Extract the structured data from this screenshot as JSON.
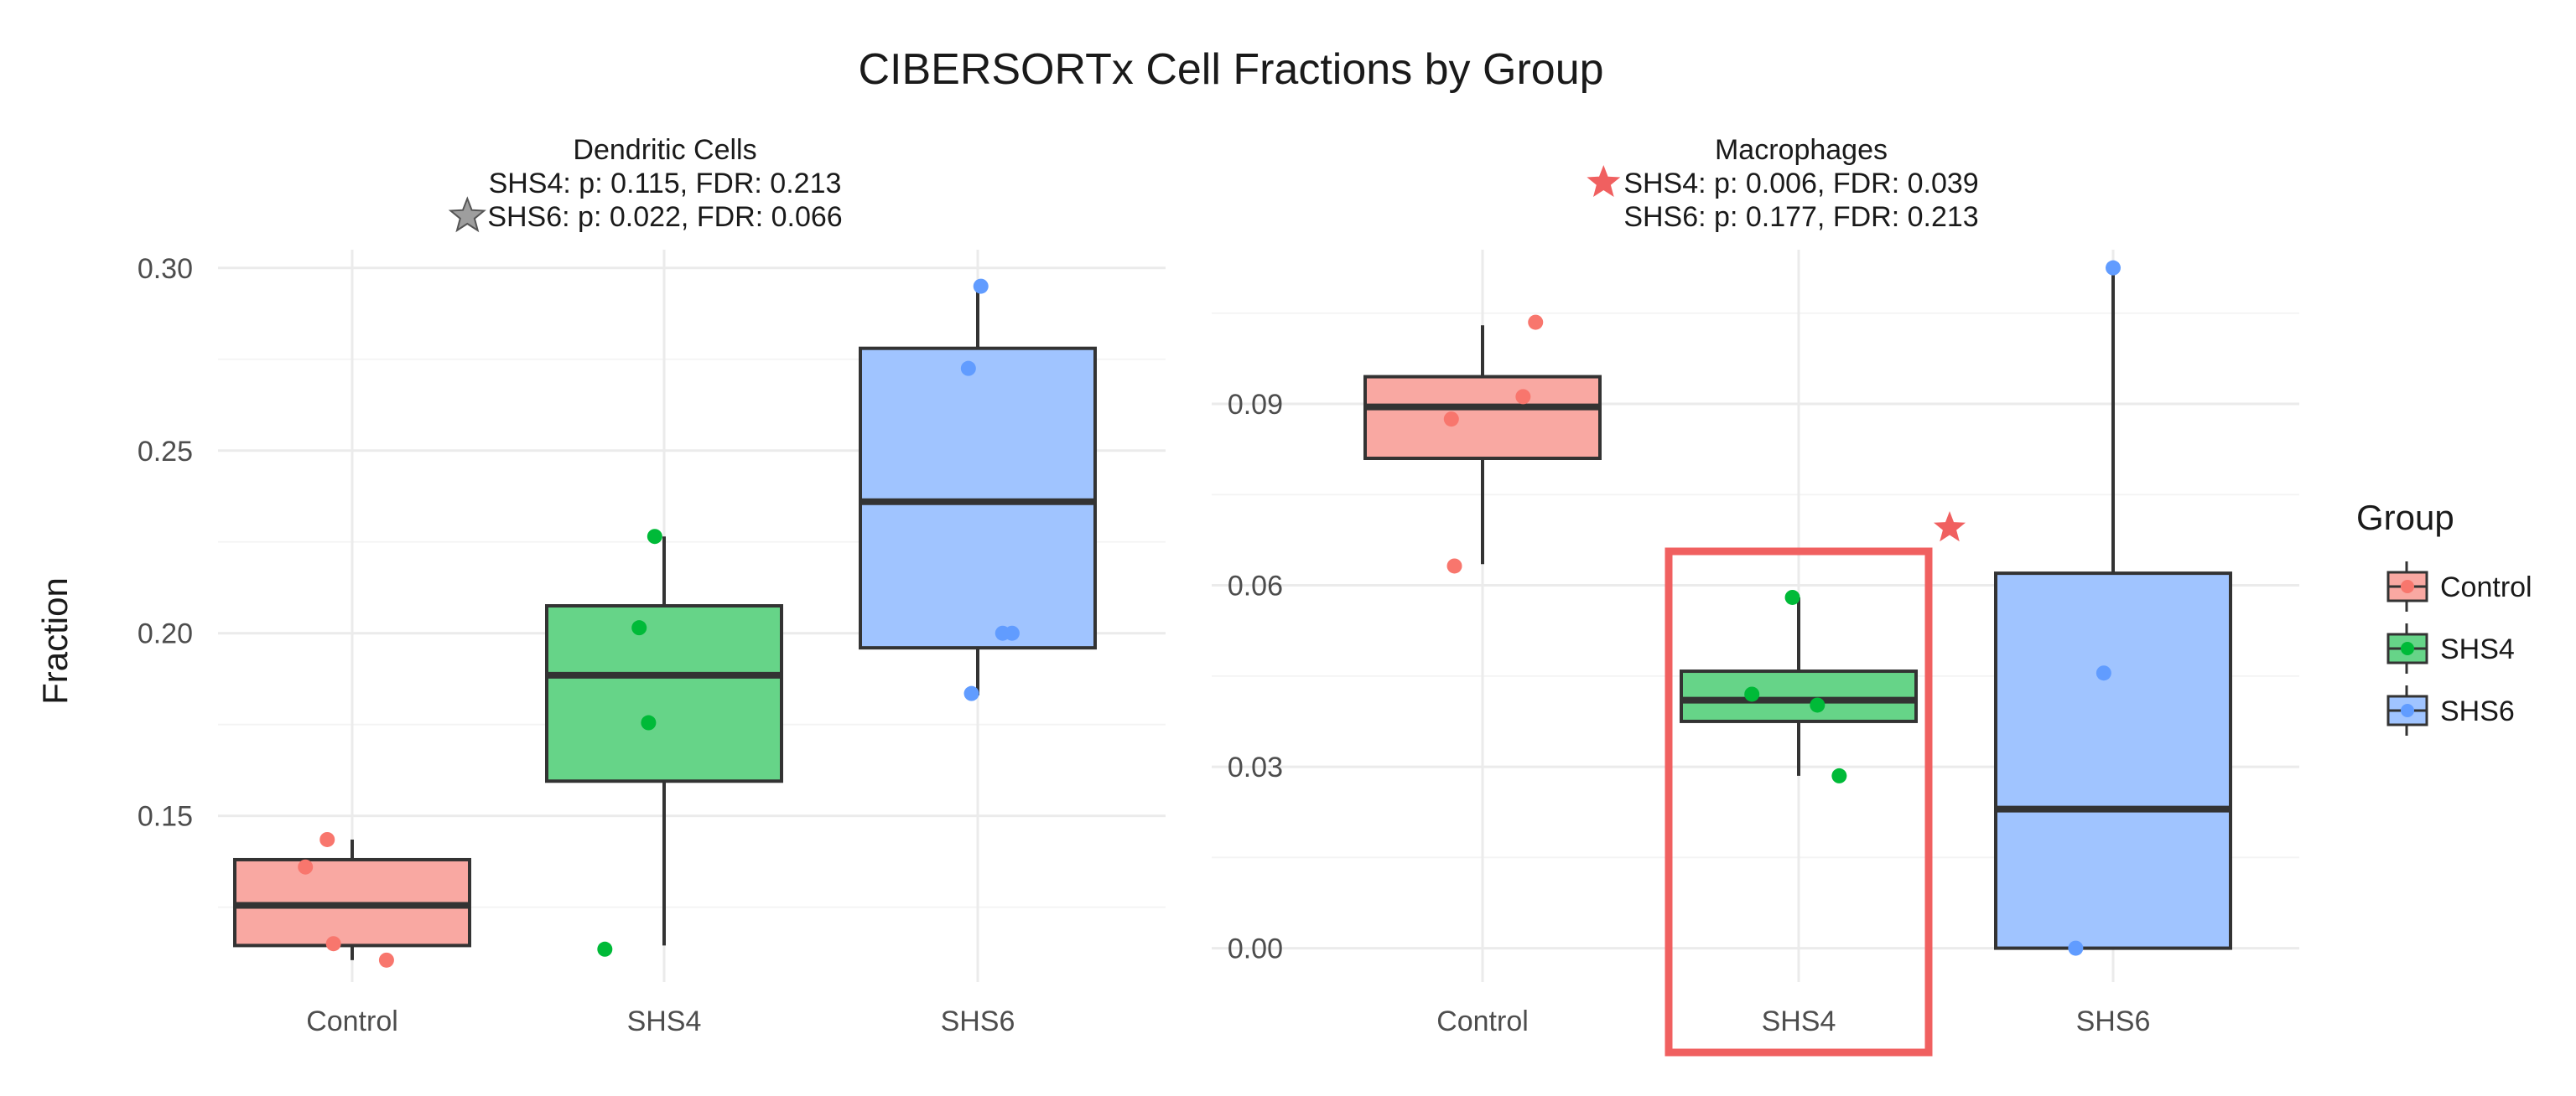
{
  "figure_title": "CIBERSORTx Cell Fractions by Group",
  "colors": {
    "Control": "#F8766D",
    "SHS4": "#00BA38",
    "SHS6": "#619CFF",
    "Control_fill": "#F9A8A2",
    "SHS4_fill": "#66D488",
    "SHS6_fill": "#A0C4FF",
    "highlight": "#F06060",
    "star_gray": "#9E9E9E"
  },
  "legend": {
    "title": "Group",
    "entries": [
      "Control",
      "SHS4",
      "SHS6"
    ]
  },
  "chart_data": [
    {
      "type": "box",
      "title": "Dendritic Cells",
      "subtitle_lines": [
        {
          "text": "SHS4: p: 0.115, FDR: 0.213",
          "star": "none"
        },
        {
          "text": "SHS6: p: 0.022, FDR: 0.066",
          "star": "gray"
        }
      ],
      "xlabel": "",
      "ylabel": "Fraction",
      "categories": [
        "Control",
        "SHS4",
        "SHS6"
      ],
      "ylim": [
        0.1045,
        0.305
      ],
      "yticks": [
        0.15,
        0.2,
        0.25,
        0.3
      ],
      "ytick_labels": [
        "0.15",
        "0.20",
        "0.25",
        "0.30"
      ],
      "boxes": [
        {
          "group": "Control",
          "q1": 0.1145,
          "median": 0.1255,
          "q3": 0.138,
          "whisker_low": 0.1105,
          "whisker_high": 0.1435
        },
        {
          "group": "SHS4",
          "q1": 0.1595,
          "median": 0.1885,
          "q3": 0.2075,
          "whisker_low": 0.1145,
          "whisker_high": 0.2265
        },
        {
          "group": "SHS6",
          "q1": 0.196,
          "median": 0.236,
          "q3": 0.278,
          "whisker_low": 0.183,
          "whisker_high": 0.295
        }
      ],
      "points": [
        {
          "group": "Control",
          "jitter": -0.15,
          "y": 0.136
        },
        {
          "group": "Control",
          "jitter": -0.08,
          "y": 0.1435
        },
        {
          "group": "Control",
          "jitter": -0.06,
          "y": 0.115
        },
        {
          "group": "Control",
          "jitter": 0.11,
          "y": 0.1105
        },
        {
          "group": "SHS4",
          "jitter": -0.19,
          "y": 0.1135
        },
        {
          "group": "SHS4",
          "jitter": -0.08,
          "y": 0.2015
        },
        {
          "group": "SHS4",
          "jitter": -0.05,
          "y": 0.1755
        },
        {
          "group": "SHS4",
          "jitter": -0.03,
          "y": 0.2265
        },
        {
          "group": "SHS6",
          "jitter": -0.02,
          "y": 0.1835
        },
        {
          "group": "SHS6",
          "jitter": -0.03,
          "y": 0.2725
        },
        {
          "group": "SHS6",
          "jitter": 0.01,
          "y": 0.295
        },
        {
          "group": "SHS6",
          "jitter": 0.08,
          "y": 0.2
        },
        {
          "group": "SHS6",
          "jitter": 0.11,
          "y": 0.2
        }
      ]
    },
    {
      "type": "box",
      "title": "Macrophages",
      "subtitle_lines": [
        {
          "text": "SHS4: p: 0.006, FDR: 0.039",
          "star": "red"
        },
        {
          "text": "SHS6: p: 0.177, FDR: 0.213",
          "star": "none"
        }
      ],
      "xlabel": "",
      "ylabel": "",
      "categories": [
        "Control",
        "SHS4",
        "SHS6"
      ],
      "ylim": [
        -0.0056,
        0.1155
      ],
      "yticks": [
        0.0,
        0.03,
        0.06,
        0.09
      ],
      "ytick_labels": [
        "0.00",
        "0.03",
        "0.06",
        "0.09"
      ],
      "highlight_category": "SHS4",
      "boxes": [
        {
          "group": "Control",
          "q1": 0.081,
          "median": 0.0895,
          "q3": 0.0945,
          "whisker_low": 0.0635,
          "whisker_high": 0.103
        },
        {
          "group": "SHS4",
          "q1": 0.0375,
          "median": 0.041,
          "q3": 0.0458,
          "whisker_low": 0.0285,
          "whisker_high": 0.058
        },
        {
          "group": "SHS6",
          "q1": 0.0,
          "median": 0.023,
          "q3": 0.062,
          "whisker_low": 0.0,
          "whisker_high": 0.1125
        }
      ],
      "points": [
        {
          "group": "Control",
          "jitter": -0.1,
          "y": 0.0875
        },
        {
          "group": "Control",
          "jitter": -0.09,
          "y": 0.0632
        },
        {
          "group": "Control",
          "jitter": 0.13,
          "y": 0.0912
        },
        {
          "group": "Control",
          "jitter": 0.17,
          "y": 0.1035
        },
        {
          "group": "SHS4",
          "jitter": -0.15,
          "y": 0.042
        },
        {
          "group": "SHS4",
          "jitter": -0.02,
          "y": 0.058
        },
        {
          "group": "SHS4",
          "jitter": 0.06,
          "y": 0.0402
        },
        {
          "group": "SHS4",
          "jitter": 0.13,
          "y": 0.0285
        },
        {
          "group": "SHS6",
          "jitter": -0.12,
          "y": 0.0
        },
        {
          "group": "SHS6",
          "jitter": -0.03,
          "y": 0.0455
        },
        {
          "group": "SHS6",
          "jitter": 0.0,
          "y": 0.1125
        }
      ]
    }
  ]
}
